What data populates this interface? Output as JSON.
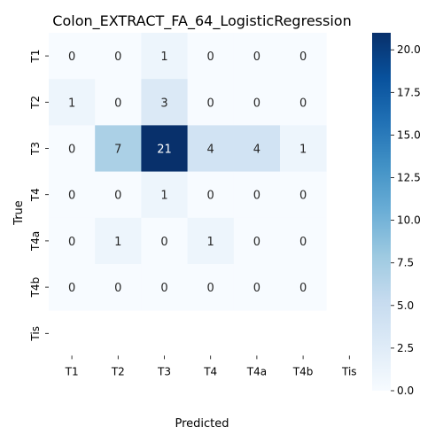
{
  "chart_data": {
    "type": "heatmap",
    "title": "Colon_EXTRACT_FA_64_LogisticRegression",
    "xlabel": "Predicted",
    "ylabel": "True",
    "x_categories": [
      "T1",
      "T2",
      "T3",
      "T4",
      "T4a",
      "T4b",
      "Tis"
    ],
    "y_categories": [
      "T1",
      "T2",
      "T3",
      "T4",
      "T4a",
      "T4b",
      "Tis"
    ],
    "values": [
      [
        0,
        0,
        1,
        0,
        0,
        0,
        null
      ],
      [
        1,
        0,
        3,
        0,
        0,
        0,
        null
      ],
      [
        0,
        7,
        21,
        4,
        4,
        1,
        null
      ],
      [
        0,
        0,
        1,
        0,
        0,
        0,
        null
      ],
      [
        0,
        1,
        0,
        1,
        0,
        0,
        null
      ],
      [
        0,
        0,
        0,
        0,
        0,
        0,
        null
      ],
      [
        null,
        null,
        null,
        null,
        null,
        null,
        null
      ]
    ],
    "colormap": "Blues",
    "colorbar": {
      "range": [
        0,
        21
      ],
      "ticks": [
        "0.0",
        "2.5",
        "5.0",
        "7.5",
        "10.0",
        "12.5",
        "15.0",
        "17.5",
        "20.0"
      ]
    }
  }
}
